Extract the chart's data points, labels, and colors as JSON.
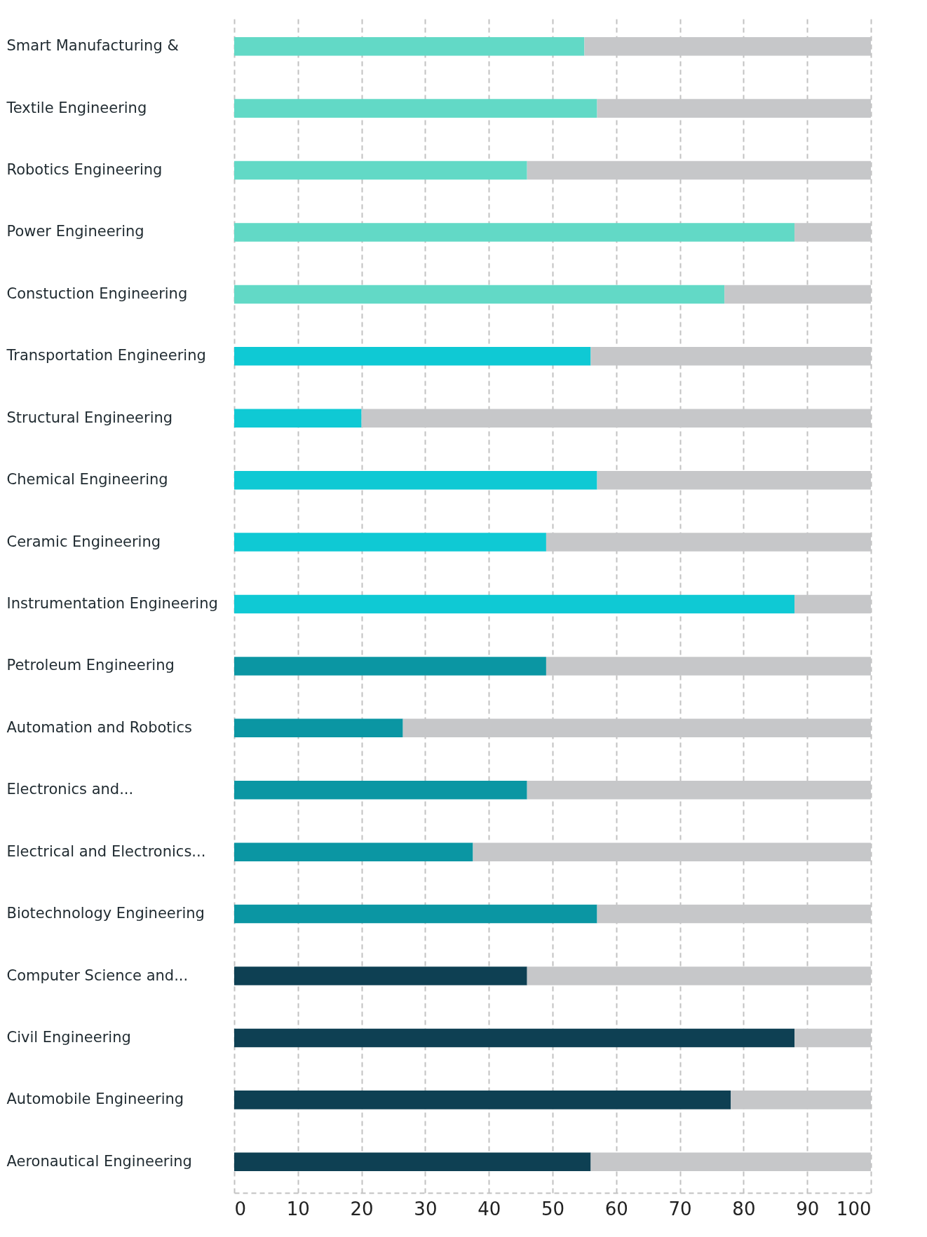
{
  "chart_data": {
    "type": "bar",
    "orientation": "horizontal",
    "stacked": true,
    "categories": [
      "Smart Manufacturing &",
      "Textile Engineering",
      "Robotics Engineering",
      "Power Engineering",
      "Constuction Engineering",
      "Transportation Engineering",
      "Structural Engineering",
      "Chemical Engineering",
      "Ceramic Engineering",
      "Instrumentation Engineering",
      "Petroleum Engineering",
      "Automation and Robotics",
      "Electronics and...",
      "Electrical and Electronics...",
      "Biotechnology Engineering",
      "Computer Science and...",
      "Civil Engineering",
      "Automobile Engineering",
      "Aeronautical Engineering"
    ],
    "series": [
      {
        "colors": [
          "#62d9c6",
          "#62d9c6",
          "#62d9c6",
          "#62d9c6",
          "#62d9c6",
          "#0fc9d4",
          "#0fc9d4",
          "#0fc9d4",
          "#0fc9d4",
          "#0fc9d4",
          "#0b96a3",
          "#0b96a3",
          "#0b96a3",
          "#0b96a3",
          "#0b96a3",
          "#0e4053",
          "#0e4053",
          "#0e4053",
          "#0e4053"
        ],
        "values": [
          55,
          57,
          46,
          88,
          77,
          56,
          20,
          57,
          49,
          88,
          49,
          26.5,
          46,
          37.5,
          57,
          46,
          88,
          78,
          56
        ]
      },
      {
        "color": "#c6c7c9",
        "values": [
          45,
          43,
          54,
          12,
          23,
          44,
          80,
          43,
          51,
          12,
          51,
          73.5,
          54,
          62.5,
          43,
          54,
          12,
          22,
          44
        ]
      }
    ],
    "xlim": [
      0,
      100
    ],
    "xticks": [
      0,
      10,
      20,
      30,
      40,
      50,
      60,
      70,
      80,
      90,
      100
    ],
    "grid": "x"
  }
}
